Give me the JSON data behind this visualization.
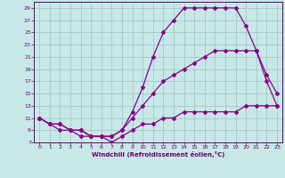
{
  "title": "",
  "xlabel": "Windchill (Refroidissement éolien,°C)",
  "ylabel": "",
  "bg_color": "#c8e8e8",
  "grid_color": "#a0c8c8",
  "line_color": "#880088",
  "text_color": "#660066",
  "xlim": [
    -0.5,
    23.5
  ],
  "ylim": [
    7,
    30
  ],
  "xticks": [
    0,
    1,
    2,
    3,
    4,
    5,
    6,
    7,
    8,
    9,
    10,
    11,
    12,
    13,
    14,
    15,
    16,
    17,
    18,
    19,
    20,
    21,
    22,
    23
  ],
  "yticks": [
    7,
    9,
    11,
    13,
    15,
    17,
    19,
    21,
    23,
    25,
    27,
    29
  ],
  "curve_upper_x": [
    0,
    1,
    2,
    3,
    4,
    5,
    6,
    7,
    8,
    9,
    10,
    11,
    12,
    13,
    14,
    15,
    16,
    17,
    18,
    19,
    20,
    21,
    22,
    23
  ],
  "curve_upper_y": [
    11,
    10,
    10,
    9,
    9,
    8,
    8,
    8,
    9,
    12,
    16,
    21,
    25,
    27,
    29,
    29,
    29,
    29,
    29,
    29,
    26,
    22,
    17,
    13
  ],
  "curve_mid_x": [
    0,
    1,
    2,
    3,
    4,
    5,
    6,
    7,
    8,
    9,
    10,
    11,
    12,
    13,
    14,
    15,
    16,
    17,
    18,
    19,
    20,
    21,
    22,
    23
  ],
  "curve_mid_y": [
    11,
    10,
    10,
    9,
    9,
    8,
    8,
    8,
    9,
    11,
    13,
    15,
    17,
    18,
    19,
    20,
    21,
    22,
    22,
    22,
    22,
    22,
    18,
    15
  ],
  "curve_lower_x": [
    0,
    1,
    2,
    3,
    4,
    5,
    6,
    7,
    8,
    9,
    10,
    11,
    12,
    13,
    14,
    15,
    16,
    17,
    18,
    19,
    20,
    21,
    22,
    23
  ],
  "curve_lower_y": [
    11,
    10,
    9,
    9,
    8,
    8,
    8,
    7,
    8,
    9,
    10,
    10,
    11,
    11,
    12,
    12,
    12,
    12,
    12,
    12,
    13,
    13,
    13,
    13
  ]
}
